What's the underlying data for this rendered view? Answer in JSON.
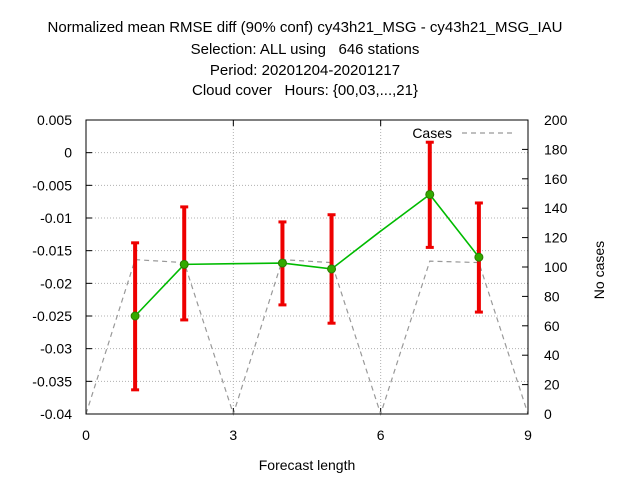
{
  "chart_data": {
    "type": "line",
    "title_lines": [
      "Normalized mean RMSE diff (90% conf) cy43h21_MSG - cy43h21_MSG_IAU",
      "Selection: ALL using   646 stations",
      "Period: 20201204-20201217",
      "Cloud cover   Hours: {00,03,...,21}"
    ],
    "xlabel": "Forecast length",
    "ylabel_left": "",
    "ylabel_right": "No cases",
    "xlim": [
      0,
      9
    ],
    "ylim": [
      -0.04,
      0.005
    ],
    "y2lim": [
      0,
      200
    ],
    "x_ticks": [
      "0",
      "3",
      "6",
      "9"
    ],
    "y_ticks": [
      "0.005",
      "0",
      "-0.005",
      "-0.01",
      "-0.015",
      "-0.02",
      "-0.025",
      "-0.03",
      "-0.035",
      "-0.04"
    ],
    "y2_ticks": [
      "200",
      "180",
      "160",
      "140",
      "120",
      "100",
      "80",
      "60",
      "40",
      "20",
      "0"
    ],
    "grid": true,
    "legend_position": "top-right",
    "series": [
      {
        "color": "#00bb00",
        "marker_color": "#33aa00",
        "points": [
          {
            "x": 1,
            "y": -0.025,
            "err_low": -0.0363,
            "err_high": -0.0138
          },
          {
            "x": 2,
            "y": -0.0171,
            "err_low": -0.0256,
            "err_high": -0.0083
          },
          {
            "x": 3,
            "y": -0.017
          },
          {
            "x": 4,
            "y": -0.0169,
            "err_low": -0.0233,
            "err_high": -0.0106
          },
          {
            "x": 5,
            "y": -0.0178,
            "err_low": -0.0261,
            "err_high": -0.0095
          },
          {
            "x": 6,
            "y": -0.012
          },
          {
            "x": 7,
            "y": -0.0064,
            "err_low": -0.0145,
            "err_high": 0.0016
          },
          {
            "x": 8,
            "y": -0.016,
            "err_low": -0.0244,
            "err_high": -0.0077
          }
        ],
        "error_bar_color": "#ee0000"
      },
      {
        "name": "Cases",
        "axis": "right",
        "style": "dashed",
        "color": "#999999",
        "x": [
          0,
          1,
          2,
          3,
          4,
          5,
          6,
          7,
          8,
          9
        ],
        "values": [
          0,
          105,
          103,
          0,
          105,
          103,
          0,
          104,
          103,
          0
        ]
      }
    ]
  }
}
